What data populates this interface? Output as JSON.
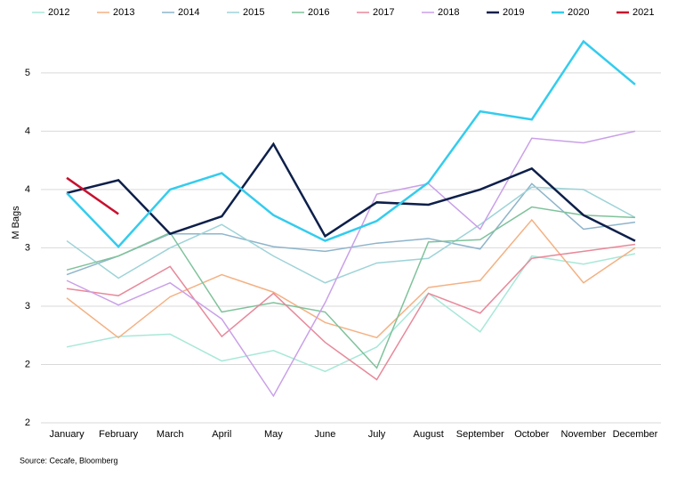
{
  "chart_data": {
    "type": "line",
    "y_label": "M Bags",
    "source": "Source: Cecafe, Bloomberg",
    "categories": [
      "January",
      "February",
      "March",
      "April",
      "May",
      "June",
      "July",
      "August",
      "September",
      "October",
      "November",
      "December"
    ],
    "ylim": [
      1.5,
      4.85
    ],
    "yticks": [
      {
        "value": 1.5,
        "label": "2"
      },
      {
        "value": 2,
        "label": "2"
      },
      {
        "value": 2.5,
        "label": "3"
      },
      {
        "value": 3,
        "label": "3"
      },
      {
        "value": 3.5,
        "label": "4"
      },
      {
        "value": 4,
        "label": "4"
      },
      {
        "value": 4.5,
        "label": "5"
      }
    ],
    "grid": true,
    "legend": "top",
    "series": [
      {
        "name": "2012",
        "color": "#a8e8d8",
        "width": 1.5,
        "values": [
          2.15,
          2.24,
          2.26,
          2.03,
          2.12,
          1.94,
          2.15,
          2.61,
          2.28,
          2.93,
          2.86,
          2.95
        ]
      },
      {
        "name": "2013",
        "color": "#f4b183",
        "width": 1.5,
        "values": [
          2.57,
          2.23,
          2.58,
          2.77,
          2.62,
          2.36,
          2.23,
          2.66,
          2.72,
          3.24,
          2.7,
          3.0
        ]
      },
      {
        "name": "2014",
        "color": "#8eb4cb",
        "width": 1.5,
        "values": [
          2.77,
          2.93,
          3.12,
          3.12,
          3.01,
          2.97,
          3.04,
          3.08,
          2.99,
          3.55,
          3.16,
          3.22
        ]
      },
      {
        "name": "2015",
        "color": "#9dd3d8",
        "width": 1.5,
        "values": [
          3.06,
          2.74,
          3.0,
          3.2,
          2.93,
          2.7,
          2.87,
          2.91,
          3.2,
          3.52,
          3.5,
          3.26
        ]
      },
      {
        "name": "2016",
        "color": "#7fc29b",
        "width": 1.5,
        "values": [
          2.81,
          2.93,
          3.13,
          2.45,
          2.53,
          2.45,
          1.97,
          3.05,
          3.07,
          3.35,
          3.28,
          3.26
        ]
      },
      {
        "name": "2017",
        "color": "#e8899a",
        "width": 1.5,
        "values": [
          2.65,
          2.59,
          2.84,
          2.24,
          2.61,
          2.19,
          1.87,
          2.61,
          2.44,
          2.91,
          2.97,
          3.03
        ]
      },
      {
        "name": "2018",
        "color": "#c9a0e8",
        "width": 1.5,
        "values": [
          2.72,
          2.51,
          2.7,
          2.39,
          1.73,
          2.53,
          3.46,
          3.55,
          3.16,
          3.94,
          3.9,
          4.0
        ]
      },
      {
        "name": "2019",
        "color": "#0d1f4a",
        "width": 2.5,
        "values": [
          3.47,
          3.58,
          3.12,
          3.27,
          3.89,
          3.1,
          3.39,
          3.37,
          3.5,
          3.68,
          3.28,
          3.06
        ]
      },
      {
        "name": "2020",
        "color": "#33ccee",
        "width": 2.5,
        "values": [
          3.47,
          3.01,
          3.5,
          3.64,
          3.28,
          3.06,
          3.23,
          3.56,
          4.17,
          4.1,
          4.77,
          4.4
        ]
      },
      {
        "name": "2021",
        "color": "#c8102e",
        "width": 2.5,
        "values": [
          3.6,
          3.29,
          null,
          null,
          null,
          null,
          null,
          null,
          null,
          null,
          null,
          null
        ]
      }
    ]
  }
}
